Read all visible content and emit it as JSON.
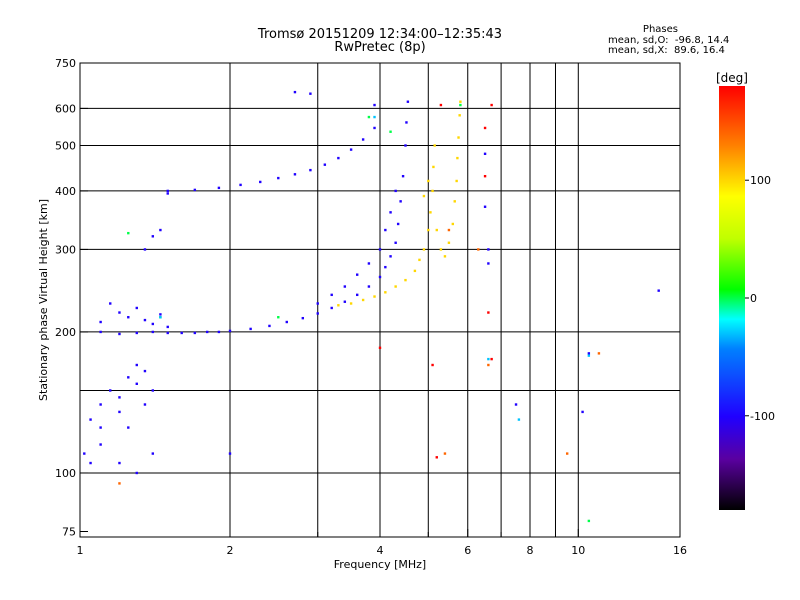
{
  "header": {
    "title_line1": "Tromsø 20151209 12:34:00–12:35:43",
    "title_line2": "RwPretec (8p)",
    "stats_title": "Phases",
    "stats_o": "mean, sd,O:  -96.8, 14.4",
    "stats_x": "mean, sd,X:  89.6, 16.4"
  },
  "chart_data": {
    "type": "scatter",
    "title": "Tromsø 20151209 12:34:00–12:35:43",
    "subtitle": "RwPretec (8p)",
    "xlabel": "Frequency [MHz]",
    "ylabel": "Stationary phase Virtual Height [km]",
    "x_scale": "log",
    "y_scale": "log",
    "xlim": [
      1,
      16
    ],
    "ylim": [
      73,
      750
    ],
    "x_ticks": [
      1,
      2,
      4,
      6,
      8,
      10,
      16
    ],
    "x_tick_labels": [
      "1",
      "2",
      "4",
      "6",
      "8",
      "10",
      "16"
    ],
    "x_minor_ticks": [
      3,
      5,
      7,
      9
    ],
    "y_ticks": [
      75,
      100,
      200,
      300,
      400,
      500,
      600,
      750
    ],
    "y_tick_labels": [
      "75",
      "100",
      "200",
      "300",
      "400",
      "500",
      "600",
      "750"
    ],
    "y_minor_ticks": [
      150
    ],
    "grid": true,
    "colorbar": {
      "label": "[deg]",
      "range": [
        -180,
        180
      ],
      "ticks": [
        100,
        0,
        -100
      ],
      "tick_labels": [
        "100",
        "0",
        "-100"
      ]
    },
    "series": [
      {
        "phase_deg": -100,
        "points": [
          [
            1.1,
            200
          ],
          [
            1.2,
            198
          ],
          [
            1.3,
            199
          ],
          [
            1.4,
            200
          ],
          [
            1.5,
            199
          ],
          [
            1.6,
            199
          ],
          [
            1.7,
            199
          ],
          [
            1.8,
            200
          ],
          [
            1.9,
            200
          ],
          [
            2.0,
            201
          ],
          [
            2.2,
            203
          ],
          [
            2.4,
            206
          ],
          [
            2.6,
            210
          ],
          [
            2.8,
            214
          ],
          [
            3.0,
            219
          ],
          [
            3.2,
            225
          ],
          [
            3.4,
            232
          ],
          [
            3.6,
            240
          ],
          [
            3.8,
            250
          ],
          [
            4.0,
            262
          ],
          [
            4.1,
            275
          ],
          [
            4.2,
            290
          ],
          [
            4.3,
            310
          ],
          [
            4.35,
            340
          ],
          [
            4.4,
            380
          ],
          [
            4.45,
            430
          ],
          [
            4.5,
            500
          ],
          [
            4.52,
            560
          ],
          [
            4.55,
            620
          ],
          [
            1.5,
            400
          ],
          [
            1.7,
            402
          ],
          [
            1.9,
            406
          ],
          [
            2.1,
            412
          ],
          [
            2.3,
            418
          ],
          [
            2.5,
            426
          ],
          [
            2.7,
            434
          ],
          [
            2.9,
            443
          ],
          [
            3.1,
            455
          ],
          [
            3.3,
            470
          ],
          [
            3.5,
            490
          ],
          [
            3.7,
            515
          ],
          [
            3.9,
            545
          ],
          [
            1.1,
            210
          ],
          [
            1.15,
            230
          ],
          [
            1.2,
            220
          ],
          [
            1.25,
            215
          ],
          [
            1.3,
            225
          ],
          [
            1.35,
            212
          ],
          [
            1.4,
            208
          ],
          [
            1.45,
            218
          ],
          [
            1.5,
            205
          ],
          [
            3.0,
            230
          ],
          [
            3.2,
            240
          ],
          [
            3.4,
            250
          ],
          [
            3.6,
            265
          ],
          [
            3.8,
            280
          ],
          [
            4.0,
            300
          ],
          [
            4.1,
            330
          ],
          [
            4.2,
            360
          ],
          [
            4.3,
            400
          ],
          [
            1.05,
            130
          ],
          [
            1.1,
            140
          ],
          [
            1.15,
            150
          ],
          [
            1.2,
            145
          ],
          [
            1.25,
            160
          ],
          [
            1.3,
            155
          ],
          [
            1.35,
            165
          ],
          [
            1.4,
            150
          ],
          [
            1.1,
            125
          ],
          [
            1.2,
            135
          ],
          [
            1.3,
            170
          ],
          [
            1.35,
            140
          ],
          [
            1.25,
            125
          ],
          [
            1.02,
            110
          ],
          [
            1.05,
            105
          ],
          [
            1.1,
            115
          ],
          [
            1.2,
            105
          ],
          [
            1.3,
            100
          ],
          [
            1.4,
            110
          ],
          [
            1.35,
            300
          ],
          [
            1.4,
            320
          ],
          [
            1.45,
            330
          ],
          [
            1.5,
            395
          ],
          [
            2.7,
            650
          ],
          [
            2.9,
            645
          ],
          [
            3.9,
            610
          ],
          [
            6.5,
            370
          ],
          [
            6.6,
            300
          ],
          [
            6.6,
            280
          ],
          [
            6.5,
            480
          ],
          [
            14.5,
            245
          ],
          [
            10.5,
            180
          ],
          [
            10.2,
            135
          ],
          [
            7.5,
            140
          ],
          [
            2.0,
            110
          ]
        ]
      },
      {
        "phase_deg": 100,
        "points": [
          [
            3.3,
            228
          ],
          [
            3.5,
            230
          ],
          [
            3.7,
            234
          ],
          [
            3.9,
            238
          ],
          [
            4.1,
            243
          ],
          [
            4.3,
            250
          ],
          [
            4.5,
            258
          ],
          [
            4.7,
            270
          ],
          [
            4.8,
            285
          ],
          [
            4.9,
            300
          ],
          [
            5.0,
            330
          ],
          [
            5.05,
            360
          ],
          [
            5.1,
            400
          ],
          [
            5.12,
            450
          ],
          [
            5.15,
            500
          ],
          [
            5.5,
            310
          ],
          [
            5.6,
            340
          ],
          [
            5.65,
            380
          ],
          [
            5.7,
            420
          ],
          [
            5.72,
            470
          ],
          [
            5.75,
            520
          ],
          [
            5.78,
            580
          ],
          [
            5.8,
            620
          ],
          [
            5.2,
            330
          ],
          [
            5.3,
            300
          ],
          [
            5.4,
            290
          ],
          [
            4.9,
            390
          ],
          [
            5.0,
            420
          ]
        ]
      },
      {
        "phase_deg": 180,
        "points": [
          [
            6.5,
            545
          ],
          [
            6.7,
            610
          ],
          [
            5.3,
            610
          ],
          [
            6.5,
            430
          ],
          [
            5.1,
            170
          ],
          [
            5.2,
            108
          ],
          [
            6.7,
            175
          ],
          [
            6.6,
            220
          ],
          [
            4.0,
            185
          ]
        ]
      },
      {
        "phase_deg": 0,
        "points": [
          [
            5.8,
            610
          ],
          [
            1.25,
            325
          ],
          [
            10.5,
            79
          ],
          [
            4.2,
            535
          ],
          [
            3.8,
            575
          ],
          [
            1.45,
            215
          ],
          [
            2.5,
            215
          ]
        ]
      },
      {
        "phase_deg": -30,
        "points": [
          [
            6.6,
            175
          ],
          [
            7.6,
            130
          ],
          [
            10.5,
            178
          ],
          [
            3.9,
            575
          ],
          [
            1.45,
            215
          ]
        ]
      },
      {
        "phase_deg": 140,
        "points": [
          [
            6.3,
            300
          ],
          [
            5.4,
            110
          ],
          [
            9.5,
            110
          ],
          [
            1.2,
            95
          ],
          [
            6.6,
            170
          ],
          [
            11.0,
            180
          ],
          [
            5.5,
            330
          ]
        ]
      }
    ]
  }
}
